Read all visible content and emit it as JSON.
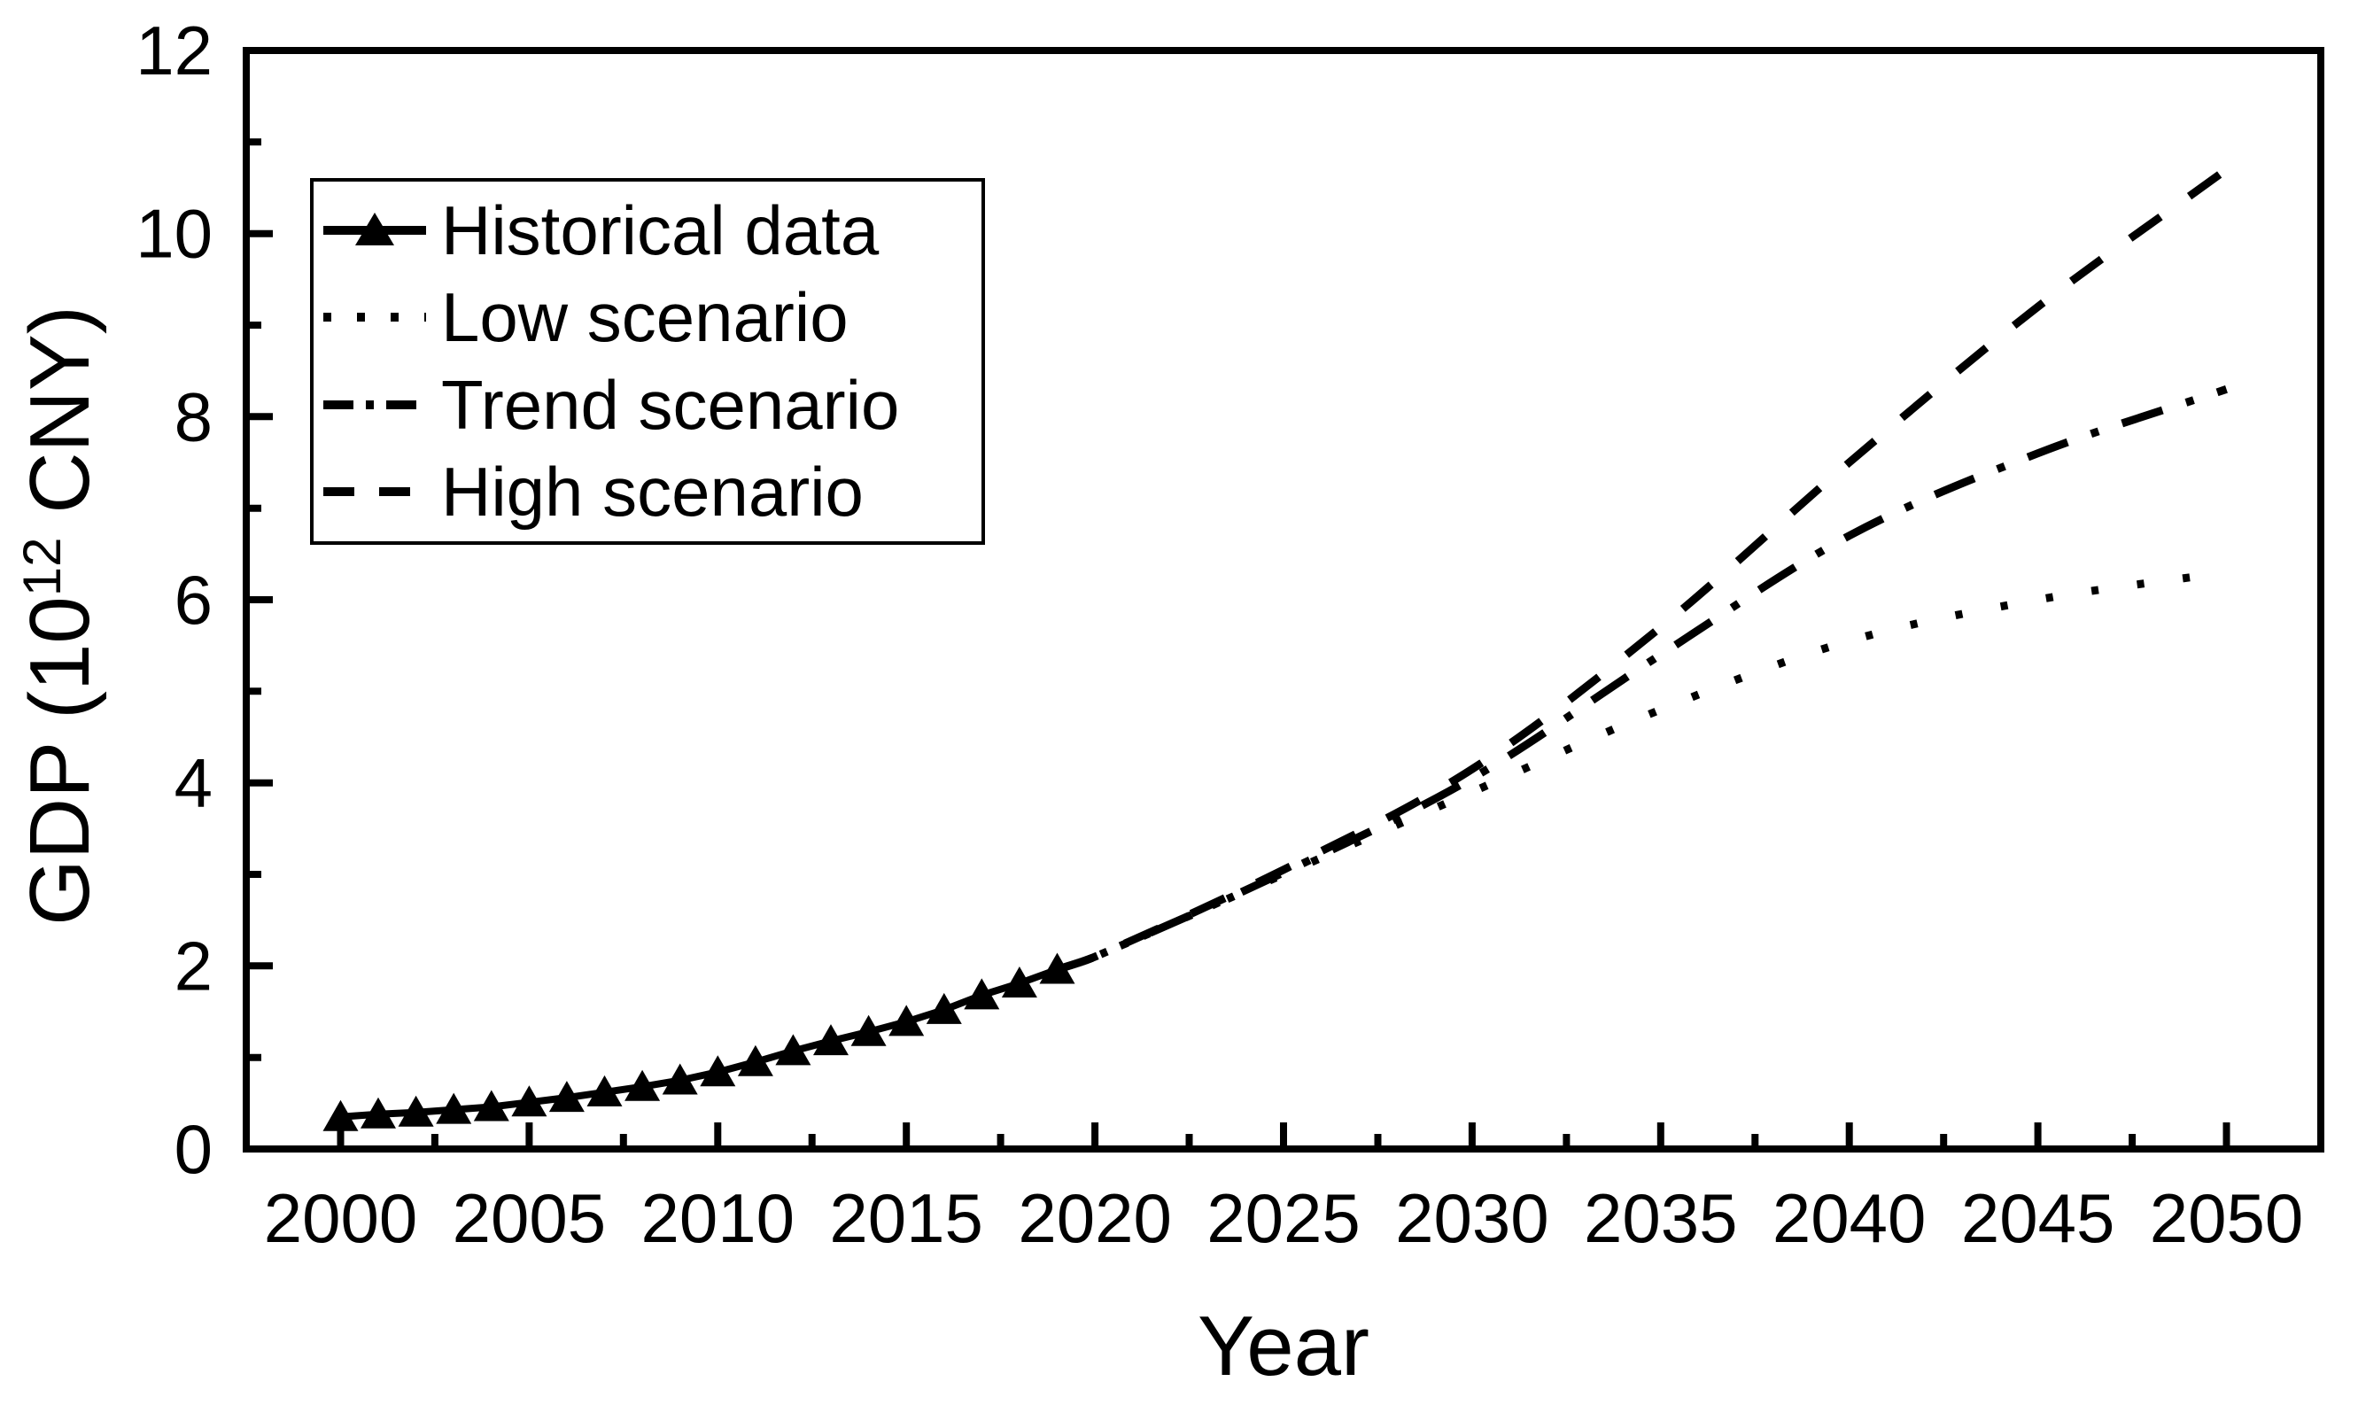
{
  "chart_data": {
    "type": "line",
    "title": "",
    "xlabel": "Year",
    "ylabel": {
      "prefix": "GDP (10",
      "superscript": "12",
      "suffix": " CNY)"
    },
    "x_range": [
      1997.5,
      2052.5
    ],
    "y_range": [
      0,
      12
    ],
    "x_major_ticks": [
      2000,
      2005,
      2010,
      2015,
      2020,
      2025,
      2030,
      2035,
      2040,
      2045,
      2050
    ],
    "x_tick_labels": [
      "2000",
      "2005",
      "2010",
      "2015",
      "2020",
      "2025",
      "2030",
      "2035",
      "2040",
      "2045",
      "2050"
    ],
    "x_minor_step": 2.5,
    "y_major_ticks": [
      0,
      2,
      4,
      6,
      8,
      10,
      12
    ],
    "y_tick_labels": [
      "0",
      "2",
      "4",
      "6",
      "8",
      "10",
      "12"
    ],
    "y_minor_ticks": [
      1,
      3,
      5,
      7,
      9,
      11
    ],
    "grid": false,
    "legend_position": "upper-left",
    "line_color": "#000000",
    "background_color": "#ffffff",
    "series": [
      {
        "name": "Historical data",
        "style": "solid",
        "marker": "triangle",
        "points": [
          [
            2000,
            0.35
          ],
          [
            2001,
            0.38
          ],
          [
            2002,
            0.4
          ],
          [
            2003,
            0.43
          ],
          [
            2004,
            0.46
          ],
          [
            2005,
            0.51
          ],
          [
            2006,
            0.56
          ],
          [
            2007,
            0.62
          ],
          [
            2008,
            0.68
          ],
          [
            2009,
            0.75
          ],
          [
            2010,
            0.84
          ],
          [
            2011,
            0.95
          ],
          [
            2012,
            1.07
          ],
          [
            2013,
            1.18
          ],
          [
            2014,
            1.28
          ],
          [
            2015,
            1.39
          ],
          [
            2016,
            1.52
          ],
          [
            2017,
            1.68
          ],
          [
            2018,
            1.81
          ],
          [
            2019,
            1.96
          ]
        ]
      },
      {
        "name": "Low scenario",
        "style": "dotted",
        "marker": null,
        "points": [
          [
            2019,
            1.96
          ],
          [
            2020,
            2.1
          ],
          [
            2025,
            3.0
          ],
          [
            2030,
            3.9
          ],
          [
            2035,
            4.8
          ],
          [
            2040,
            5.55
          ],
          [
            2045,
            6.0
          ],
          [
            2050,
            6.3
          ]
        ]
      },
      {
        "name": "Trend scenario",
        "style": "dashdot",
        "marker": null,
        "points": [
          [
            2019,
            1.96
          ],
          [
            2020,
            2.1
          ],
          [
            2025,
            3.02
          ],
          [
            2030,
            4.05
          ],
          [
            2035,
            5.4
          ],
          [
            2040,
            6.7
          ],
          [
            2045,
            7.6
          ],
          [
            2050,
            8.3
          ]
        ]
      },
      {
        "name": "High scenario",
        "style": "dashed",
        "marker": null,
        "points": [
          [
            2019,
            1.96
          ],
          [
            2020,
            2.1
          ],
          [
            2025,
            3.05
          ],
          [
            2030,
            4.15
          ],
          [
            2035,
            5.7
          ],
          [
            2040,
            7.5
          ],
          [
            2045,
            9.2
          ],
          [
            2050,
            10.7
          ]
        ]
      }
    ]
  }
}
